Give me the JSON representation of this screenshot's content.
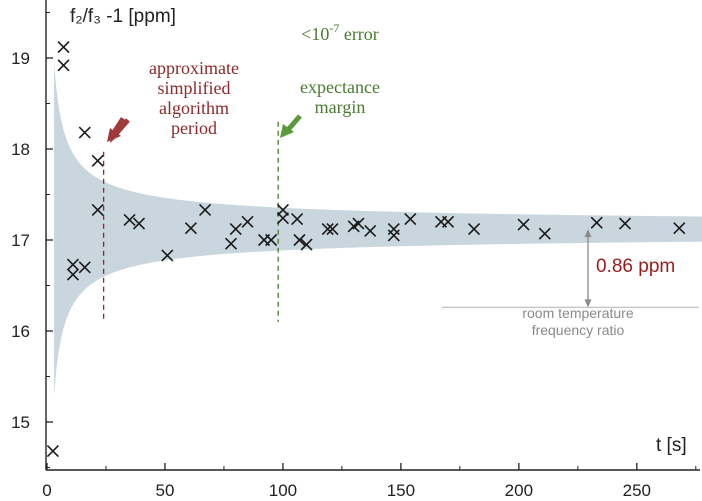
{
  "chart_data": {
    "type": "scatter",
    "ylabel": "f₂/f₃ -1 [ppm]",
    "xlabel": "t [s]",
    "xlim": [
      0,
      280
    ],
    "ylim": [
      14.5,
      19.5
    ],
    "x_ticks": [
      0,
      50,
      100,
      150,
      200,
      250
    ],
    "y_ticks": [
      15,
      16,
      17,
      18,
      19
    ],
    "x_tick_labels": [
      "0",
      "50",
      "100",
      "150",
      "200",
      "250"
    ],
    "y_tick_labels": [
      "15",
      "16",
      "17",
      "18",
      "19"
    ],
    "grid": false,
    "convergence_band": {
      "center": 17.12,
      "color": "#c9d6dd",
      "note": "shaded margin narrowing with time"
    },
    "points": [
      {
        "x": 2.5,
        "y": 14.68
      },
      {
        "x": 7,
        "y": 19.12
      },
      {
        "x": 7,
        "y": 18.92
      },
      {
        "x": 11,
        "y": 16.73
      },
      {
        "x": 11,
        "y": 16.62
      },
      {
        "x": 16,
        "y": 18.18
      },
      {
        "x": 16,
        "y": 16.7
      },
      {
        "x": 21.5,
        "y": 17.87
      },
      {
        "x": 21.5,
        "y": 17.33
      },
      {
        "x": 35,
        "y": 17.22
      },
      {
        "x": 39,
        "y": 17.18
      },
      {
        "x": 51,
        "y": 16.83
      },
      {
        "x": 61,
        "y": 17.13
      },
      {
        "x": 67,
        "y": 17.33
      },
      {
        "x": 78,
        "y": 16.96
      },
      {
        "x": 80,
        "y": 17.12
      },
      {
        "x": 85,
        "y": 17.2
      },
      {
        "x": 92,
        "y": 17.0
      },
      {
        "x": 95,
        "y": 17.0
      },
      {
        "x": 100,
        "y": 17.33
      },
      {
        "x": 100,
        "y": 17.24
      },
      {
        "x": 106,
        "y": 17.23
      },
      {
        "x": 107,
        "y": 17.0
      },
      {
        "x": 110,
        "y": 16.95
      },
      {
        "x": 119,
        "y": 17.12
      },
      {
        "x": 121,
        "y": 17.12
      },
      {
        "x": 130,
        "y": 17.15
      },
      {
        "x": 132,
        "y": 17.18
      },
      {
        "x": 137,
        "y": 17.1
      },
      {
        "x": 147,
        "y": 17.05
      },
      {
        "x": 147,
        "y": 17.12
      },
      {
        "x": 154,
        "y": 17.23
      },
      {
        "x": 167,
        "y": 17.2
      },
      {
        "x": 170,
        "y": 17.2
      },
      {
        "x": 181,
        "y": 17.12
      },
      {
        "x": 202,
        "y": 17.17
      },
      {
        "x": 211,
        "y": 17.07
      },
      {
        "x": 233,
        "y": 17.19
      },
      {
        "x": 245,
        "y": 17.18
      },
      {
        "x": 268,
        "y": 17.13
      }
    ],
    "annotations": {
      "period": {
        "lines": [
          "approximate",
          "simplified",
          "algorithm",
          "period"
        ],
        "x": 24,
        "color": "#8b2a2a"
      },
      "margin": {
        "lines": [
          "<10",
          "-7",
          " error",
          "expectance",
          "margin"
        ],
        "x": 98,
        "color": "#4a7a2e"
      },
      "offset": {
        "label": "0.86 ppm",
        "color": "#9b1b1b",
        "y_low": 16.26,
        "y_high": 17.12
      },
      "room_temperature": {
        "lines": [
          "room temperature",
          "frequency ratio"
        ],
        "y": 16.26,
        "color": "#8a8a8a"
      }
    }
  }
}
